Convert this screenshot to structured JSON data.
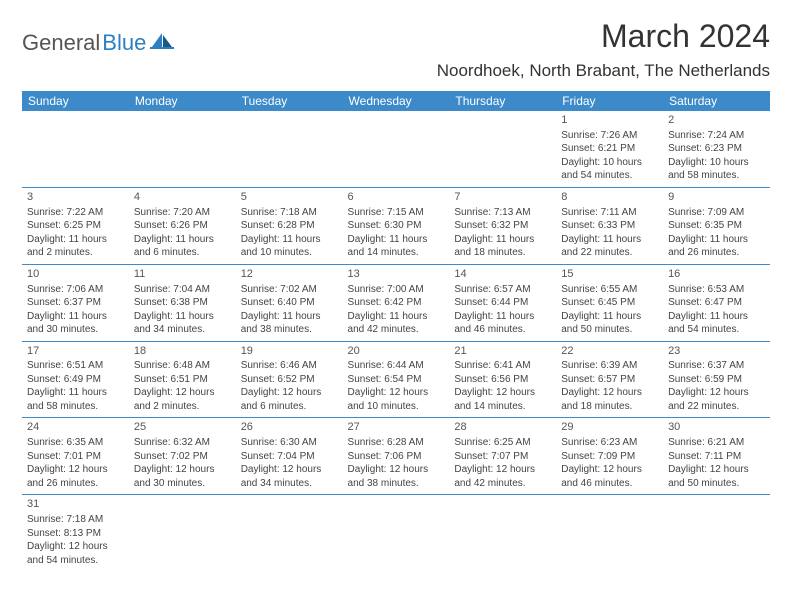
{
  "logo": {
    "general": "General",
    "blue": "Blue"
  },
  "title": "March 2024",
  "location": "Noordhoek, North Brabant, The Netherlands",
  "colors": {
    "header_bg": "#3c8ac9",
    "header_text": "#ffffff",
    "border": "#3c8ac9",
    "text": "#444444",
    "title": "#333333",
    "logo_gray": "#555555",
    "logo_blue": "#2d7fbf",
    "page_bg": "#ffffff"
  },
  "weekdays": [
    "Sunday",
    "Monday",
    "Tuesday",
    "Wednesday",
    "Thursday",
    "Friday",
    "Saturday"
  ],
  "weeks": [
    [
      null,
      null,
      null,
      null,
      null,
      {
        "n": "1",
        "sr": "Sunrise: 7:26 AM",
        "ss": "Sunset: 6:21 PM",
        "dl": "Daylight: 10 hours and 54 minutes."
      },
      {
        "n": "2",
        "sr": "Sunrise: 7:24 AM",
        "ss": "Sunset: 6:23 PM",
        "dl": "Daylight: 10 hours and 58 minutes."
      }
    ],
    [
      {
        "n": "3",
        "sr": "Sunrise: 7:22 AM",
        "ss": "Sunset: 6:25 PM",
        "dl": "Daylight: 11 hours and 2 minutes."
      },
      {
        "n": "4",
        "sr": "Sunrise: 7:20 AM",
        "ss": "Sunset: 6:26 PM",
        "dl": "Daylight: 11 hours and 6 minutes."
      },
      {
        "n": "5",
        "sr": "Sunrise: 7:18 AM",
        "ss": "Sunset: 6:28 PM",
        "dl": "Daylight: 11 hours and 10 minutes."
      },
      {
        "n": "6",
        "sr": "Sunrise: 7:15 AM",
        "ss": "Sunset: 6:30 PM",
        "dl": "Daylight: 11 hours and 14 minutes."
      },
      {
        "n": "7",
        "sr": "Sunrise: 7:13 AM",
        "ss": "Sunset: 6:32 PM",
        "dl": "Daylight: 11 hours and 18 minutes."
      },
      {
        "n": "8",
        "sr": "Sunrise: 7:11 AM",
        "ss": "Sunset: 6:33 PM",
        "dl": "Daylight: 11 hours and 22 minutes."
      },
      {
        "n": "9",
        "sr": "Sunrise: 7:09 AM",
        "ss": "Sunset: 6:35 PM",
        "dl": "Daylight: 11 hours and 26 minutes."
      }
    ],
    [
      {
        "n": "10",
        "sr": "Sunrise: 7:06 AM",
        "ss": "Sunset: 6:37 PM",
        "dl": "Daylight: 11 hours and 30 minutes."
      },
      {
        "n": "11",
        "sr": "Sunrise: 7:04 AM",
        "ss": "Sunset: 6:38 PM",
        "dl": "Daylight: 11 hours and 34 minutes."
      },
      {
        "n": "12",
        "sr": "Sunrise: 7:02 AM",
        "ss": "Sunset: 6:40 PM",
        "dl": "Daylight: 11 hours and 38 minutes."
      },
      {
        "n": "13",
        "sr": "Sunrise: 7:00 AM",
        "ss": "Sunset: 6:42 PM",
        "dl": "Daylight: 11 hours and 42 minutes."
      },
      {
        "n": "14",
        "sr": "Sunrise: 6:57 AM",
        "ss": "Sunset: 6:44 PM",
        "dl": "Daylight: 11 hours and 46 minutes."
      },
      {
        "n": "15",
        "sr": "Sunrise: 6:55 AM",
        "ss": "Sunset: 6:45 PM",
        "dl": "Daylight: 11 hours and 50 minutes."
      },
      {
        "n": "16",
        "sr": "Sunrise: 6:53 AM",
        "ss": "Sunset: 6:47 PM",
        "dl": "Daylight: 11 hours and 54 minutes."
      }
    ],
    [
      {
        "n": "17",
        "sr": "Sunrise: 6:51 AM",
        "ss": "Sunset: 6:49 PM",
        "dl": "Daylight: 11 hours and 58 minutes."
      },
      {
        "n": "18",
        "sr": "Sunrise: 6:48 AM",
        "ss": "Sunset: 6:51 PM",
        "dl": "Daylight: 12 hours and 2 minutes."
      },
      {
        "n": "19",
        "sr": "Sunrise: 6:46 AM",
        "ss": "Sunset: 6:52 PM",
        "dl": "Daylight: 12 hours and 6 minutes."
      },
      {
        "n": "20",
        "sr": "Sunrise: 6:44 AM",
        "ss": "Sunset: 6:54 PM",
        "dl": "Daylight: 12 hours and 10 minutes."
      },
      {
        "n": "21",
        "sr": "Sunrise: 6:41 AM",
        "ss": "Sunset: 6:56 PM",
        "dl": "Daylight: 12 hours and 14 minutes."
      },
      {
        "n": "22",
        "sr": "Sunrise: 6:39 AM",
        "ss": "Sunset: 6:57 PM",
        "dl": "Daylight: 12 hours and 18 minutes."
      },
      {
        "n": "23",
        "sr": "Sunrise: 6:37 AM",
        "ss": "Sunset: 6:59 PM",
        "dl": "Daylight: 12 hours and 22 minutes."
      }
    ],
    [
      {
        "n": "24",
        "sr": "Sunrise: 6:35 AM",
        "ss": "Sunset: 7:01 PM",
        "dl": "Daylight: 12 hours and 26 minutes."
      },
      {
        "n": "25",
        "sr": "Sunrise: 6:32 AM",
        "ss": "Sunset: 7:02 PM",
        "dl": "Daylight: 12 hours and 30 minutes."
      },
      {
        "n": "26",
        "sr": "Sunrise: 6:30 AM",
        "ss": "Sunset: 7:04 PM",
        "dl": "Daylight: 12 hours and 34 minutes."
      },
      {
        "n": "27",
        "sr": "Sunrise: 6:28 AM",
        "ss": "Sunset: 7:06 PM",
        "dl": "Daylight: 12 hours and 38 minutes."
      },
      {
        "n": "28",
        "sr": "Sunrise: 6:25 AM",
        "ss": "Sunset: 7:07 PM",
        "dl": "Daylight: 12 hours and 42 minutes."
      },
      {
        "n": "29",
        "sr": "Sunrise: 6:23 AM",
        "ss": "Sunset: 7:09 PM",
        "dl": "Daylight: 12 hours and 46 minutes."
      },
      {
        "n": "30",
        "sr": "Sunrise: 6:21 AM",
        "ss": "Sunset: 7:11 PM",
        "dl": "Daylight: 12 hours and 50 minutes."
      }
    ],
    [
      {
        "n": "31",
        "sr": "Sunrise: 7:18 AM",
        "ss": "Sunset: 8:13 PM",
        "dl": "Daylight: 12 hours and 54 minutes."
      },
      null,
      null,
      null,
      null,
      null,
      null
    ]
  ]
}
